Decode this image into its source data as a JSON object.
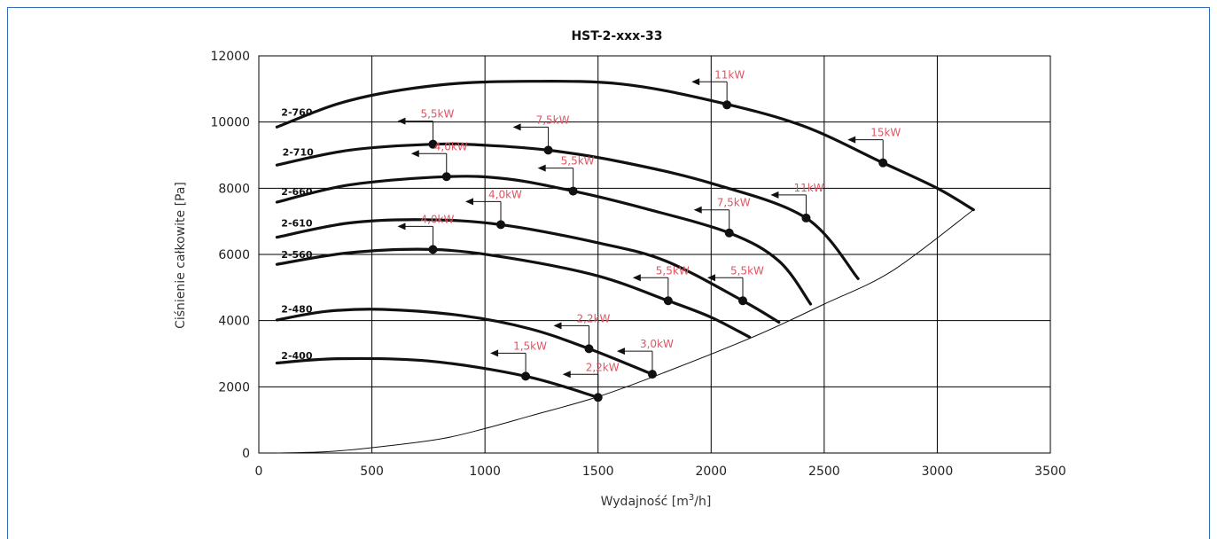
{
  "chart_data": {
    "type": "line",
    "title": "HST-2-xxx-33",
    "xlabel": "Wydajność [m",
    "xlabel_sup": "3",
    "xlabel_end": "/h]",
    "ylabel": "Ciśnienie całkowite [Pa]",
    "xlim": [
      0,
      3500
    ],
    "ylim": [
      0,
      12000
    ],
    "xticks": [
      0,
      500,
      1000,
      1500,
      2000,
      2500,
      3000,
      3500
    ],
    "yticks": [
      0,
      2000,
      4000,
      6000,
      8000,
      10000,
      12000
    ],
    "grid": true,
    "colors": {
      "curve": "#111111",
      "grid": "#000000",
      "power_label": "#e15563",
      "frame": "#2f6fb8"
    },
    "series": [
      {
        "name": "2-760",
        "label_at": [
          60,
          10300
        ],
        "points": [
          [
            80,
            9850
          ],
          [
            400,
            10650
          ],
          [
            800,
            11120
          ],
          [
            1200,
            11230
          ],
          [
            1600,
            11150
          ],
          [
            2000,
            10650
          ],
          [
            2400,
            9900
          ],
          [
            2750,
            8800
          ],
          [
            3000,
            8000
          ],
          [
            3160,
            7350
          ]
        ],
        "markers": [
          {
            "x": 2070,
            "y": 10550,
            "label": "11kW"
          },
          {
            "x": 2760,
            "y": 8780,
            "label": "15kW"
          }
        ]
      },
      {
        "name": "2-710",
        "label_at": [
          65,
          9100
        ],
        "points": [
          [
            80,
            8700
          ],
          [
            400,
            9150
          ],
          [
            770,
            9330
          ],
          [
            1000,
            9300
          ],
          [
            1280,
            9150
          ],
          [
            1600,
            8800
          ],
          [
            2000,
            8150
          ],
          [
            2420,
            7100
          ],
          [
            2650,
            5270
          ]
        ],
        "markers": [
          {
            "x": 770,
            "y": 9300,
            "label": "5,5kW"
          },
          {
            "x": 1280,
            "y": 9130,
            "label": "7,5kW"
          },
          {
            "x": 2420,
            "y": 6280,
            "label": "11kW"
          }
        ]
      },
      {
        "name": "2-660",
        "label_at": [
          60,
          7900
        ],
        "points": [
          [
            80,
            7580
          ],
          [
            400,
            8100
          ],
          [
            830,
            8350
          ],
          [
            1100,
            8280
          ],
          [
            1400,
            7900
          ],
          [
            1700,
            7400
          ],
          [
            2080,
            6650
          ],
          [
            2300,
            5800
          ],
          [
            2440,
            4500
          ]
        ],
        "markers": [
          {
            "x": 830,
            "y": 8350,
            "label": "4,0kW"
          },
          {
            "x": 1390,
            "y": 7850,
            "label": "5,5kW"
          },
          {
            "x": 2080,
            "y": 5980,
            "label": "7,5kW"
          }
        ]
      },
      {
        "name": "2-610",
        "label_at": [
          60,
          6950
        ],
        "points": [
          [
            80,
            6520
          ],
          [
            400,
            6950
          ],
          [
            730,
            7050
          ],
          [
            1070,
            6900
          ],
          [
            1500,
            6350
          ],
          [
            1800,
            5800
          ],
          [
            2140,
            4600
          ],
          [
            2300,
            3950
          ]
        ],
        "markers": [
          {
            "x": 1070,
            "y": 6900,
            "label": "4,0kW"
          },
          {
            "x": 2140,
            "y": 4600,
            "label": "5,5kW"
          }
        ]
      },
      {
        "name": "2-560",
        "label_at": [
          60,
          6000
        ],
        "points": [
          [
            80,
            5700
          ],
          [
            400,
            6050
          ],
          [
            770,
            6150
          ],
          [
            1100,
            5900
          ],
          [
            1500,
            5350
          ],
          [
            1810,
            4600
          ],
          [
            2000,
            4100
          ],
          [
            2170,
            3500
          ]
        ],
        "markers": [
          {
            "x": 770,
            "y": 6150,
            "label": "4,0kW"
          },
          {
            "x": 1810,
            "y": 4600,
            "label": "5,5kW"
          }
        ]
      },
      {
        "name": "2-480",
        "label_at": [
          60,
          4350
        ],
        "points": [
          [
            80,
            4020
          ],
          [
            300,
            4280
          ],
          [
            550,
            4340
          ],
          [
            900,
            4150
          ],
          [
            1200,
            3750
          ],
          [
            1460,
            3150
          ],
          [
            1740,
            2380
          ]
        ],
        "markers": [
          {
            "x": 1460,
            "y": 3150,
            "label": "2,2kW"
          },
          {
            "x": 1740,
            "y": 2380,
            "label": "3,0kW"
          }
        ]
      },
      {
        "name": "2-400",
        "label_at": [
          60,
          2950
        ],
        "points": [
          [
            80,
            2720
          ],
          [
            350,
            2850
          ],
          [
            750,
            2780
          ],
          [
            1180,
            2320
          ],
          [
            1500,
            1680
          ]
        ],
        "markers": [
          {
            "x": 1180,
            "y": 2320,
            "label": "1,5kW"
          },
          {
            "x": 1500,
            "y": 1680,
            "label": "2,2kW"
          }
        ]
      }
    ],
    "system_curve": {
      "points": [
        [
          80,
          0
        ],
        [
          300,
          40
        ],
        [
          500,
          160
        ],
        [
          800,
          420
        ],
        [
          1000,
          740
        ],
        [
          1200,
          1120
        ],
        [
          1500,
          1700
        ],
        [
          1800,
          2450
        ],
        [
          2200,
          3550
        ],
        [
          2500,
          4500
        ],
        [
          2800,
          5500
        ],
        [
          3160,
          7350
        ]
      ]
    }
  }
}
